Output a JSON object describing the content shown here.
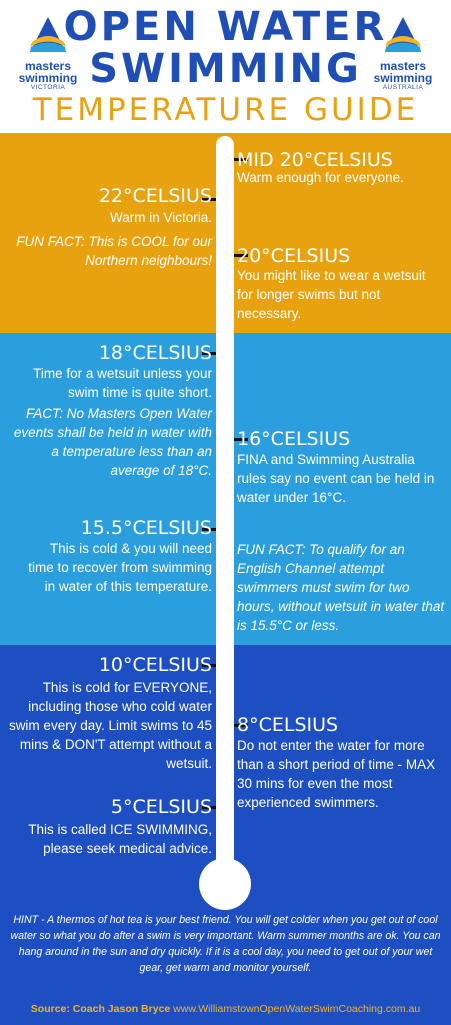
{
  "header": {
    "title_line1": "OPEN WATER",
    "title_line2": "SWIMMING",
    "subtitle": "TEMPERATURE GUIDE",
    "logo_left": {
      "line1": "masters",
      "line2": "swimming",
      "line3": "VICTORIA"
    },
    "logo_right": {
      "line1": "masters",
      "line2": "swimming",
      "line3": "AUSTRALIA"
    }
  },
  "colors": {
    "title_blue": "#1f4fb5",
    "subtitle_gold": "#e8a20f",
    "warm_band": "#e8a20f",
    "mild_band": "#2b9fdd",
    "cold_band": "#1d4fc2",
    "source_gold": "#f2b425"
  },
  "icons": [
    "masters-swimming-logo-icon",
    "thermometer-icon"
  ],
  "temps": {
    "mid20": {
      "heading": "MID 20°CELSIUS",
      "text": "Warm enough for everyone."
    },
    "t22": {
      "heading": "22°CELSIUS",
      "text": "Warm in Victoria.",
      "fact": "FUN FACT: This is COOL for our Northern neighbours!"
    },
    "t20": {
      "heading": "20°CELSIUS",
      "text": "You might like to wear a wetsuit for longer swims but not necessary."
    },
    "t18": {
      "heading": "18°CELSIUS",
      "text": "Time for a wetsuit unless your swim time is quite short.",
      "fact": "FACT: No Masters Open Water events shall be held in water with a temperature less than an average of 18°C."
    },
    "t16": {
      "heading": "16°CELSIUS",
      "text": "FINA and Swimming Australia rules say no event can be held in water under 16°C."
    },
    "t155": {
      "heading": "15.5°CELSIUS",
      "text": "This is cold & you will need time to recover from swimming in water of this temperature.",
      "fact": "FUN FACT: To qualify for an English Channel attempt swimmers must swim for two hours, without wetsuit in water that is 15.5°C or less."
    },
    "t10": {
      "heading": "10°CELSIUS",
      "text": "This is cold for EVERYONE, including those who cold water swim every day. Limit swims to 45 mins & DON'T attempt without a wetsuit."
    },
    "t8": {
      "heading": "8°CELSIUS",
      "text": "Do not enter the water for more than a short period of time - MAX 30 mins for even the most experienced swimmers."
    },
    "t5": {
      "heading": "5°CELSIUS",
      "text": "This is called ICE SWIMMING, please seek medical advice."
    }
  },
  "footer": {
    "hint": "HINT - A thermos of hot tea is your best friend.  You will get colder when you get out of cool water so what you do after a swim is very important. Warm summer months are ok. You can hang around in the sun and dry quickly. If it is a cool day, you need to get out of your wet gear, get warm and monitor yourself.",
    "source_label": "Source: Coach Jason Bryce",
    "source_url": "www.WilliamstownOpenWaterSwimCoaching.com.au"
  }
}
